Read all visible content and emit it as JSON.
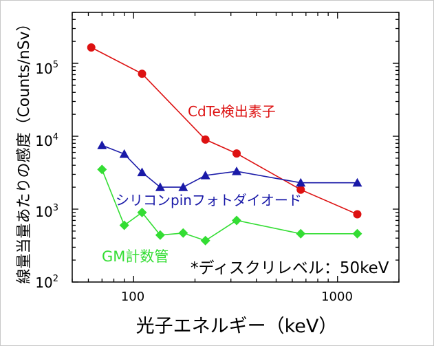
{
  "chart_data": {
    "type": "line",
    "title": "",
    "xlabel": "光子エネルギー（keV）",
    "ylabel": "線量当量あたりの感度（Counts/nSv）",
    "x_scale": "log",
    "y_scale": "log",
    "xlim": [
      50,
      2000
    ],
    "ylim": [
      100,
      500000
    ],
    "x_ticks": [
      {
        "value": 100,
        "label": "100"
      },
      {
        "value": 1000,
        "label": "1000"
      }
    ],
    "y_ticks": [
      {
        "value": 100,
        "base": "10",
        "exp": "2"
      },
      {
        "value": 1000,
        "base": "10",
        "exp": "3"
      },
      {
        "value": 10000,
        "base": "10",
        "exp": "4"
      },
      {
        "value": 100000,
        "base": "10",
        "exp": "5"
      }
    ],
    "grid": false,
    "series": [
      {
        "name": "CdTe検出素子",
        "color": "#dd1111",
        "marker": "circle",
        "x": [
          62,
          110,
          225,
          320,
          660,
          1250
        ],
        "y": [
          165000,
          72000,
          9000,
          5800,
          1850,
          850
        ]
      },
      {
        "name": "シリコンpinフォトダイオード",
        "color": "#1a1aa8",
        "marker": "triangle",
        "x": [
          70,
          90,
          110,
          135,
          175,
          225,
          320,
          660,
          1250
        ],
        "y": [
          7500,
          5700,
          3200,
          2000,
          2000,
          2900,
          3300,
          2300,
          2300
        ]
      },
      {
        "name": "GM計数管",
        "color": "#33dd33",
        "marker": "diamond",
        "x": [
          70,
          90,
          110,
          135,
          175,
          225,
          320,
          660,
          1250
        ],
        "y": [
          3500,
          600,
          900,
          440,
          470,
          370,
          700,
          460,
          460
        ]
      }
    ],
    "annotation": "*ディスクリレベル：50keV"
  }
}
